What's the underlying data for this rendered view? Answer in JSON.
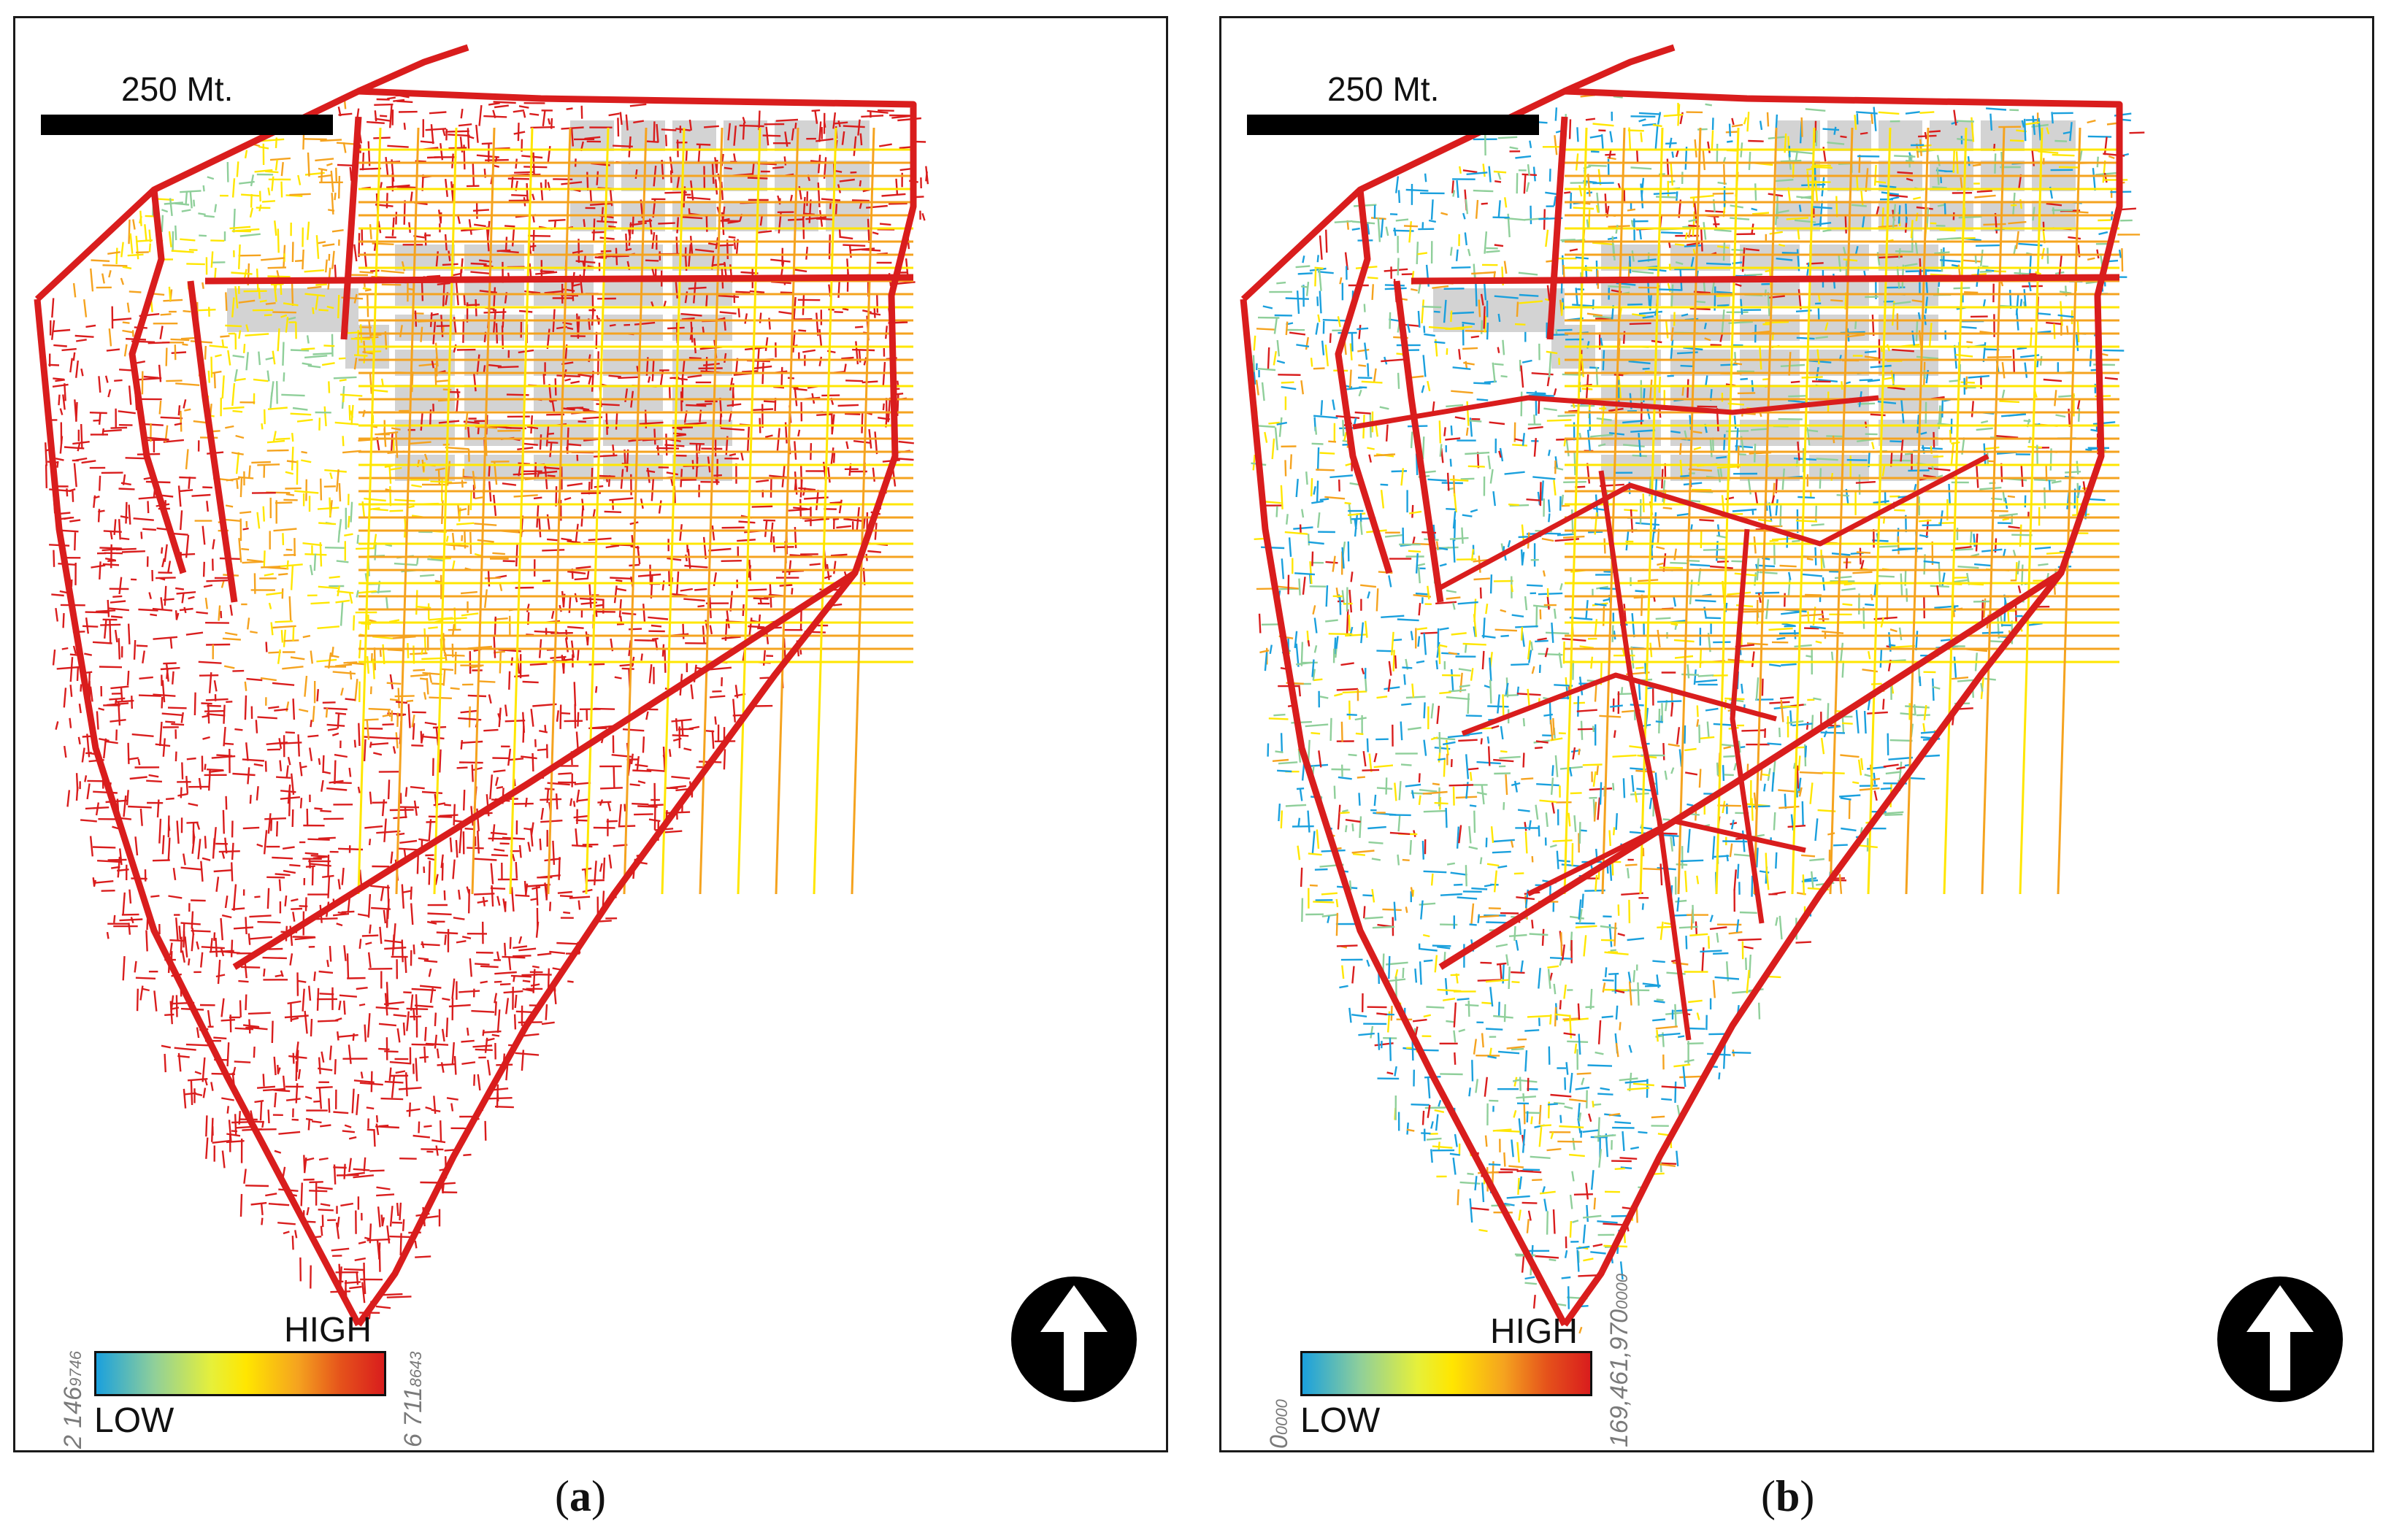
{
  "panels": [
    {
      "id": "a",
      "scale_label": "250 Mt.",
      "legend": {
        "high_label": "HIGH",
        "low_label": "LOW",
        "min_value": "2 146",
        "min_decimals": "9746",
        "max_value": "6 711",
        "max_decimals": "8643"
      },
      "caption_open": "(",
      "caption_letter": "a",
      "caption_close": ")"
    },
    {
      "id": "b",
      "scale_label": "250 Mt.",
      "legend": {
        "high_label": "HIGH",
        "low_label": "LOW",
        "min_value": "0",
        "min_decimals": "0000",
        "max_value": "169,461,970",
        "max_decimals": "0000"
      },
      "caption_open": "(",
      "caption_letter": "b",
      "caption_close": ")"
    }
  ],
  "colors": {
    "low": "#1aa0dd",
    "mid_low": "#8fcf9a",
    "mid": "#ffe600",
    "mid_high": "#f5a31f",
    "high": "#d91d1d",
    "blocks": "#d3d3d3",
    "frame": "#1a1a1a"
  },
  "icons": {
    "north_arrow": "north-arrow-icon"
  }
}
